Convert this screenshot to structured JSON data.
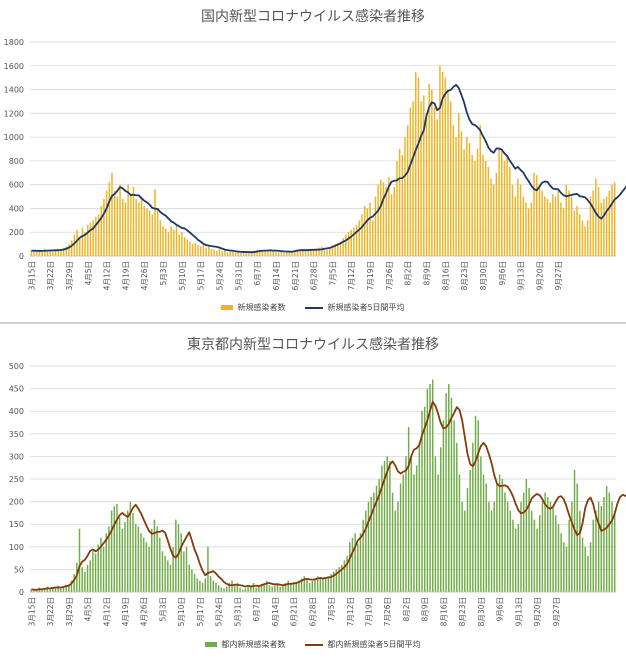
{
  "colors": {
    "national_bar": "#f0b323",
    "national_line": "#1f3864",
    "tokyo_bar": "#70ad47",
    "tokyo_line": "#843c0c"
  },
  "x_tick_labels": [
    "3月15日",
    "3月22日",
    "3月29日",
    "4月5日",
    "4月12日",
    "4月19日",
    "4月26日",
    "5月3日",
    "5月10日",
    "5月17日",
    "5月24日",
    "5月31日",
    "6月7日",
    "6月14日",
    "6月21日",
    "6月28日",
    "7月5日",
    "7月12日",
    "7月19日",
    "7月26日",
    "8月2日",
    "8月9日",
    "8月16日",
    "8月23日",
    "8月30日",
    "9月6日",
    "9月13日",
    "9月20日",
    "9月27日"
  ],
  "chart_data": [
    {
      "type": "bar",
      "title": "国内新型コロナウイルス感染者推移",
      "ylim": [
        0,
        1800
      ],
      "yticks": [
        0,
        200,
        400,
        600,
        800,
        1000,
        1200,
        1400,
        1600,
        1800
      ],
      "grid": true,
      "legend_position": "bottom",
      "x_start": "3月15日",
      "x_end": "10月1日",
      "series": [
        {
          "name": "新規感染者数",
          "type": "bar",
          "values": [
            45,
            50,
            40,
            55,
            35,
            60,
            45,
            50,
            40,
            55,
            60,
            45,
            70,
            80,
            100,
            130,
            180,
            220,
            150,
            240,
            200,
            260,
            280,
            300,
            330,
            350,
            420,
            480,
            550,
            620,
            700,
            550,
            500,
            600,
            480,
            450,
            600,
            520,
            580,
            480,
            450,
            500,
            420,
            400,
            380,
            350,
            560,
            400,
            300,
            250,
            230,
            200,
            250,
            220,
            270,
            180,
            200,
            160,
            140,
            120,
            100,
            110,
            90,
            80,
            100,
            70,
            80,
            60,
            55,
            45,
            70,
            40,
            50,
            30,
            40,
            35,
            30,
            45,
            25,
            30,
            40,
            35,
            30,
            45,
            50,
            55,
            35,
            40,
            45,
            50,
            40,
            35,
            30,
            45,
            30,
            40,
            45,
            35,
            50,
            55,
            45,
            50,
            40,
            55,
            60,
            45,
            50,
            70,
            80,
            60,
            50,
            70,
            90,
            100,
            110,
            120,
            150,
            180,
            200,
            220,
            240,
            260,
            300,
            350,
            420,
            400,
            450,
            300,
            500,
            600,
            640,
            620,
            580,
            660,
            520,
            580,
            800,
            900,
            850,
            1000,
            1100,
            1250,
            1300,
            1550,
            1500,
            1300,
            1350,
            1200,
            1450,
            1400,
            1250,
            1150,
            1600,
            1550,
            1500,
            1400,
            1300,
            1100,
            1000,
            1200,
            1050,
            900,
            1000,
            950,
            850,
            800,
            900,
            1100,
            850,
            800,
            750,
            650,
            600,
            700,
            900,
            880,
            800,
            850,
            750,
            600,
            500,
            650,
            600,
            500,
            450,
            400,
            450,
            700,
            680,
            600,
            550,
            500,
            480,
            450,
            520,
            500,
            550,
            450,
            400,
            600,
            550,
            500,
            380,
            420,
            350,
            300,
            250,
            300,
            500,
            550,
            650,
            580,
            450,
            480,
            500,
            550,
            600,
            620
          ]
        },
        {
          "name": "新規感染者5日間平均",
          "type": "line",
          "values": [
            44,
            45,
            44,
            42,
            43,
            44,
            45,
            46,
            47,
            48,
            49,
            50,
            55,
            61,
            71,
            85,
            106,
            128,
            154,
            168,
            178,
            198,
            217,
            232,
            261,
            290,
            319,
            356,
            401,
            459,
            506,
            522,
            548,
            580,
            568,
            547,
            535,
            512,
            515,
            511,
            510,
            485,
            465,
            452,
            431,
            405,
            398,
            396,
            370,
            352,
            339,
            315,
            292,
            280,
            262,
            250,
            235,
            232,
            216,
            197,
            177,
            159,
            136,
            121,
            103,
            92,
            87,
            83,
            80,
            77,
            71,
            62,
            54,
            49,
            46,
            44,
            40,
            37,
            35,
            34,
            33,
            33,
            32,
            33,
            38,
            42,
            44,
            45,
            46,
            48,
            45,
            45,
            43,
            41,
            39,
            38,
            37,
            36,
            41,
            45,
            49,
            50,
            49,
            50,
            51,
            52,
            53,
            54,
            56,
            61,
            64,
            68,
            76,
            86,
            96,
            107,
            120,
            131,
            146,
            163,
            183,
            203,
            223,
            244,
            272,
            300,
            321,
            332,
            356,
            381,
            420,
            482,
            530,
            584,
            626,
            632,
            637,
            654,
            655,
            676,
            706,
            768,
            828,
            890,
            946,
            1010,
            1057,
            1180,
            1252,
            1294,
            1282,
            1226,
            1246,
            1324,
            1366,
            1390,
            1396,
            1422,
            1440,
            1413,
            1355,
            1290,
            1208,
            1147,
            1110,
            1102,
            1083,
            1057,
            1009,
            967,
            915,
            883,
            868,
            904,
            905,
            894,
            863,
            843,
            802,
            770,
            735,
            749,
            724,
            702,
            662,
            629,
            592,
            563,
            552,
            582,
            616,
            626,
            624,
            592,
            568,
            563,
            561,
            532,
            511,
            502,
            508,
            514,
            519,
            522,
            503,
            499,
            493,
            470,
            441,
            403,
            362,
            332,
            314,
            339,
            377,
            407,
            440,
            475,
            493,
            516,
            546,
            574,
            605,
            635,
            655
          ]
        }
      ]
    },
    {
      "type": "bar",
      "title": "東京都内新型コロナウイルス感染者推移",
      "ylim": [
        0,
        500
      ],
      "yticks": [
        0,
        50,
        100,
        150,
        200,
        250,
        300,
        350,
        400,
        450,
        500
      ],
      "grid": true,
      "legend_position": "bottom",
      "x_start": "3月15日",
      "x_end": "10月1日",
      "series": [
        {
          "name": "都内新規感染者数",
          "type": "bar",
          "values": [
            5,
            3,
            7,
            10,
            4,
            8,
            12,
            6,
            9,
            11,
            14,
            8,
            13,
            16,
            17,
            25,
            40,
            65,
            140,
            55,
            45,
            60,
            70,
            90,
            85,
            105,
            120,
            100,
            130,
            145,
            180,
            190,
            195,
            165,
            140,
            155,
            180,
            200,
            175,
            150,
            145,
            130,
            120,
            110,
            100,
            140,
            160,
            145,
            120,
            90,
            80,
            70,
            60,
            100,
            160,
            150,
            130,
            90,
            100,
            60,
            50,
            40,
            30,
            25,
            20,
            30,
            100,
            35,
            25,
            20,
            15,
            10,
            8,
            12,
            20,
            25,
            15,
            20,
            10,
            5,
            8,
            12,
            15,
            20,
            10,
            14,
            18,
            20,
            25,
            15,
            12,
            14,
            20,
            12,
            14,
            20,
            25,
            18,
            22,
            20,
            25,
            30,
            35,
            28,
            20,
            24,
            30,
            35,
            32,
            28,
            30,
            35,
            40,
            45,
            50,
            55,
            60,
            70,
            80,
            110,
            120,
            130,
            107,
            130,
            160,
            180,
            200,
            210,
            220,
            235,
            250,
            280,
            290,
            300,
            290,
            220,
            180,
            200,
            240,
            260,
            300,
            365,
            300,
            260,
            280,
            330,
            400,
            410,
            450,
            460,
            470,
            300,
            260,
            320,
            380,
            440,
            460,
            430,
            380,
            330,
            260,
            200,
            180,
            230,
            270,
            330,
            390,
            380,
            300,
            260,
            240,
            200,
            180,
            200,
            240,
            260,
            250,
            220,
            200,
            180,
            160,
            140,
            150,
            200,
            220,
            250,
            230,
            180,
            160,
            140,
            170,
            200,
            220,
            210,
            200,
            190,
            170,
            150,
            130,
            110,
            100,
            160,
            200,
            270,
            240,
            180,
            120,
            100,
            80,
            110,
            160,
            180,
            200,
            190,
            210,
            235,
            220,
            200,
            180
          ]
        },
        {
          "name": "都内新規感染者5日間平均",
          "type": "line",
          "values": [
            6,
            5,
            5,
            6,
            6,
            7,
            8,
            8,
            9,
            10,
            10,
            10,
            11,
            13,
            14,
            19,
            27,
            37,
            57,
            67,
            71,
            80,
            91,
            94,
            90,
            94,
            100,
            108,
            116,
            125,
            136,
            149,
            160,
            170,
            175,
            170,
            166,
            175,
            186,
            193,
            184,
            174,
            160,
            147,
            135,
            129,
            130,
            133,
            133,
            136,
            131,
            114,
            95,
            80,
            76,
            84,
            100,
            111,
            122,
            132,
            114,
            94,
            80,
            62,
            47,
            37,
            42,
            44,
            46,
            41,
            34,
            29,
            22,
            18,
            15,
            15,
            16,
            16,
            15,
            14,
            12,
            14,
            12,
            13,
            14,
            13,
            15,
            17,
            19,
            20,
            18,
            17,
            17,
            16,
            15,
            16,
            18,
            18,
            19,
            20,
            22,
            25,
            28,
            29,
            28,
            27,
            28,
            30,
            31,
            30,
            31,
            32,
            33,
            36,
            40,
            45,
            50,
            55,
            62,
            74,
            87,
            100,
            114,
            120,
            129,
            140,
            156,
            170,
            186,
            200,
            215,
            232,
            250,
            266,
            282,
            289,
            280,
            267,
            262,
            266,
            269,
            279,
            301,
            315,
            318,
            325,
            347,
            363,
            380,
            401,
            421,
            412,
            395,
            374,
            362,
            364,
            372,
            385,
            396,
            409,
            403,
            380,
            343,
            306,
            283,
            278,
            289,
            307,
            323,
            330,
            322,
            305,
            285,
            259,
            240,
            234,
            235,
            236,
            233,
            224,
            212,
            195,
            181,
            174,
            176,
            182,
            193,
            207,
            213,
            217,
            214,
            205,
            194,
            187,
            184,
            189,
            200,
            210,
            212,
            205,
            189,
            170,
            154,
            138,
            126,
            130,
            152,
            186,
            203,
            209,
            194,
            168,
            152,
            135,
            138,
            142,
            150,
            158,
            173,
            195,
            210,
            215,
            213,
            209,
            206
          ]
        }
      ]
    }
  ]
}
